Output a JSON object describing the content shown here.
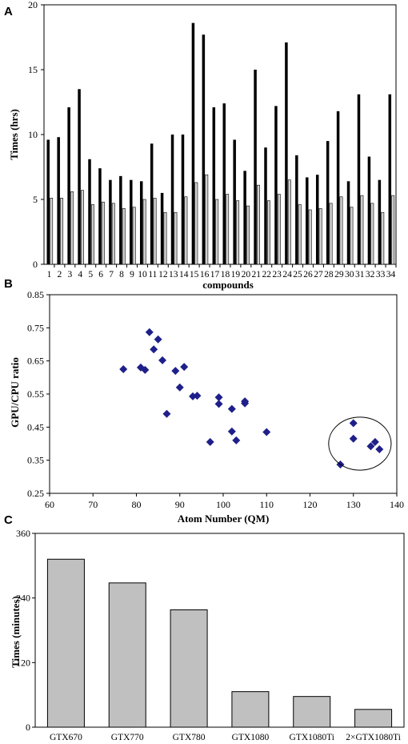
{
  "chart_data": [
    {
      "panel": "A",
      "type": "bar",
      "xlabel": "compounds",
      "ylabel": "Times (hrs)",
      "ylim": [
        0,
        20
      ],
      "yticks": [
        0,
        5,
        10,
        15,
        20
      ],
      "categories": [
        "1",
        "2",
        "3",
        "4",
        "5",
        "6",
        "7",
        "8",
        "9",
        "10",
        "11",
        "12",
        "13",
        "14",
        "15",
        "16",
        "17",
        "18",
        "19",
        "20",
        "21",
        "22",
        "23",
        "24",
        "25",
        "26",
        "27",
        "28",
        "29",
        "30",
        "31",
        "32",
        "33",
        "34"
      ],
      "series": [
        {
          "color": "#000000",
          "values": [
            9.6,
            9.8,
            12.1,
            13.5,
            8.1,
            7.4,
            6.5,
            6.8,
            6.5,
            6.4,
            9.3,
            5.5,
            10.0,
            10.0,
            18.6,
            17.7,
            12.1,
            12.4,
            9.6,
            7.2,
            15.0,
            9.0,
            12.2,
            17.1,
            8.4,
            6.7,
            6.9,
            9.5,
            11.8,
            6.4,
            13.1,
            8.3,
            6.5,
            13.1
          ]
        },
        {
          "color": "#d0d0d0",
          "values": [
            5.1,
            5.1,
            5.6,
            5.7,
            4.6,
            4.8,
            4.7,
            4.3,
            4.4,
            5.0,
            5.1,
            4.0,
            4.0,
            5.2,
            6.3,
            6.9,
            5.0,
            5.4,
            4.9,
            4.5,
            6.1,
            4.9,
            5.4,
            6.5,
            4.6,
            4.2,
            4.3,
            4.7,
            5.2,
            4.4,
            5.3,
            4.7,
            4.0,
            5.3
          ]
        }
      ],
      "grid": false
    },
    {
      "panel": "B",
      "type": "scatter",
      "xlabel": "Atom Number (QM)",
      "ylabel": "GPU/CPU ratio",
      "xlim": [
        60,
        140
      ],
      "ylim": [
        0.25,
        0.85
      ],
      "xticks": [
        60,
        70,
        80,
        90,
        100,
        110,
        120,
        130,
        140
      ],
      "yticks": [
        0.25,
        0.35,
        0.45,
        0.55,
        0.65,
        0.75,
        0.85
      ],
      "marker_color": "#1f1f8a",
      "points": [
        {
          "x": 77,
          "y": 0.625
        },
        {
          "x": 81,
          "y": 0.63
        },
        {
          "x": 82,
          "y": 0.623
        },
        {
          "x": 83,
          "y": 0.737
        },
        {
          "x": 84,
          "y": 0.685
        },
        {
          "x": 85,
          "y": 0.715
        },
        {
          "x": 86,
          "y": 0.652
        },
        {
          "x": 87,
          "y": 0.49
        },
        {
          "x": 89,
          "y": 0.62
        },
        {
          "x": 90,
          "y": 0.57
        },
        {
          "x": 91,
          "y": 0.632
        },
        {
          "x": 93,
          "y": 0.543
        },
        {
          "x": 94,
          "y": 0.545
        },
        {
          "x": 97,
          "y": 0.405
        },
        {
          "x": 99,
          "y": 0.54
        },
        {
          "x": 99,
          "y": 0.52
        },
        {
          "x": 102,
          "y": 0.505
        },
        {
          "x": 102,
          "y": 0.437
        },
        {
          "x": 103,
          "y": 0.41
        },
        {
          "x": 105,
          "y": 0.528
        },
        {
          "x": 105,
          "y": 0.522
        },
        {
          "x": 110,
          "y": 0.435
        },
        {
          "x": 127,
          "y": 0.337
        },
        {
          "x": 130,
          "y": 0.462
        },
        {
          "x": 130,
          "y": 0.415
        },
        {
          "x": 134,
          "y": 0.392
        },
        {
          "x": 135,
          "y": 0.405
        },
        {
          "x": 136,
          "y": 0.383
        }
      ],
      "annotation": {
        "shape": "ellipse",
        "center": {
          "x": 131.5,
          "y": 0.4
        },
        "rx": 7.2,
        "ry": 0.08
      },
      "grid": false
    },
    {
      "panel": "C",
      "type": "bar",
      "xlabel": "",
      "ylabel": "Times (minutes)",
      "ylim": [
        0,
        360
      ],
      "yticks": [
        0,
        120,
        240,
        360
      ],
      "categories": [
        "GTX670",
        "GTX770",
        "GTX780",
        "GTX1080",
        "GTX1080Ti",
        "2×GTX1080Ti"
      ],
      "values": [
        312,
        268,
        218,
        66,
        57,
        33
      ],
      "bar_color": "#c0c0c0",
      "grid": false
    }
  ]
}
